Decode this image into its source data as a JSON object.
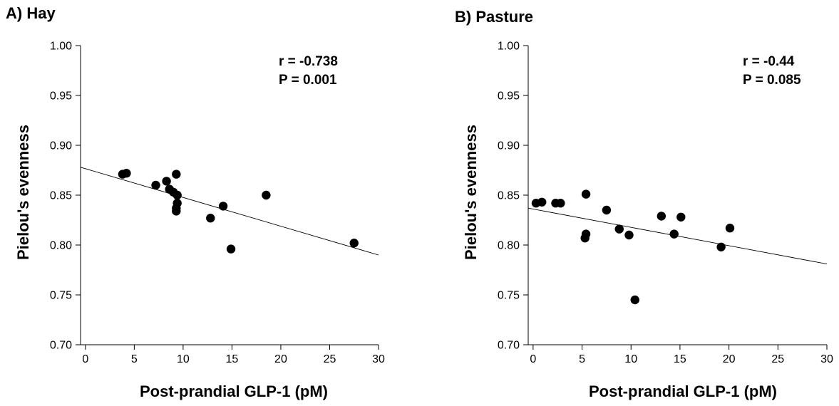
{
  "chart_data": [
    {
      "type": "scatter",
      "title": "A) Hay",
      "xlabel": "Post-prandial GLP-1 (pM)",
      "ylabel": "Pielou's evenness",
      "xlim": [
        -0.5,
        30
      ],
      "ylim": [
        0.7,
        1.0
      ],
      "xticks": [
        0,
        5,
        10,
        15,
        20,
        25,
        30
      ],
      "yticks": [
        0.7,
        0.75,
        0.8,
        0.85,
        0.9,
        0.95,
        1.0
      ],
      "ytick_labels": [
        "0.70",
        "0.75",
        "0.80",
        "0.85",
        "0.90",
        "0.95",
        "1.00"
      ],
      "grid": false,
      "points": [
        {
          "x": 3.8,
          "y": 0.871
        },
        {
          "x": 4.2,
          "y": 0.872
        },
        {
          "x": 7.2,
          "y": 0.86
        },
        {
          "x": 8.3,
          "y": 0.864
        },
        {
          "x": 8.6,
          "y": 0.856
        },
        {
          "x": 9.0,
          "y": 0.853
        },
        {
          "x": 9.3,
          "y": 0.871
        },
        {
          "x": 9.4,
          "y": 0.85
        },
        {
          "x": 9.4,
          "y": 0.842
        },
        {
          "x": 9.3,
          "y": 0.837
        },
        {
          "x": 9.3,
          "y": 0.834
        },
        {
          "x": 12.8,
          "y": 0.827
        },
        {
          "x": 14.1,
          "y": 0.839
        },
        {
          "x": 14.9,
          "y": 0.796
        },
        {
          "x": 18.5,
          "y": 0.85
        },
        {
          "x": 27.5,
          "y": 0.802
        }
      ],
      "fit_line": {
        "x": [
          -0.5,
          30
        ],
        "y": [
          0.878,
          0.79
        ]
      },
      "annotations": [
        "r = -0.738",
        "P = 0.001"
      ]
    },
    {
      "type": "scatter",
      "title": "B) Pasture",
      "xlabel": "Post-prandial GLP-1 (pM)",
      "ylabel": "Pielou's evenness",
      "xlim": [
        -0.5,
        30
      ],
      "ylim": [
        0.7,
        1.0
      ],
      "xticks": [
        0,
        5,
        10,
        15,
        20,
        25,
        30
      ],
      "yticks": [
        0.7,
        0.75,
        0.8,
        0.85,
        0.9,
        0.95,
        1.0
      ],
      "ytick_labels": [
        "0.70",
        "0.75",
        "0.80",
        "0.85",
        "0.90",
        "0.95",
        "1.00"
      ],
      "grid": false,
      "points": [
        {
          "x": 0.3,
          "y": 0.842
        },
        {
          "x": 0.9,
          "y": 0.843
        },
        {
          "x": 2.3,
          "y": 0.842
        },
        {
          "x": 2.8,
          "y": 0.842
        },
        {
          "x": 5.4,
          "y": 0.851
        },
        {
          "x": 5.4,
          "y": 0.811
        },
        {
          "x": 5.3,
          "y": 0.807
        },
        {
          "x": 7.5,
          "y": 0.835
        },
        {
          "x": 8.8,
          "y": 0.816
        },
        {
          "x": 9.8,
          "y": 0.81
        },
        {
          "x": 10.4,
          "y": 0.745
        },
        {
          "x": 13.1,
          "y": 0.829
        },
        {
          "x": 14.4,
          "y": 0.811
        },
        {
          "x": 15.1,
          "y": 0.828
        },
        {
          "x": 19.2,
          "y": 0.798
        },
        {
          "x": 20.1,
          "y": 0.817
        }
      ],
      "fit_line": {
        "x": [
          -0.5,
          30
        ],
        "y": [
          0.837,
          0.781
        ]
      },
      "annotations": [
        "r = -0.44",
        "P = 0.085"
      ]
    }
  ]
}
